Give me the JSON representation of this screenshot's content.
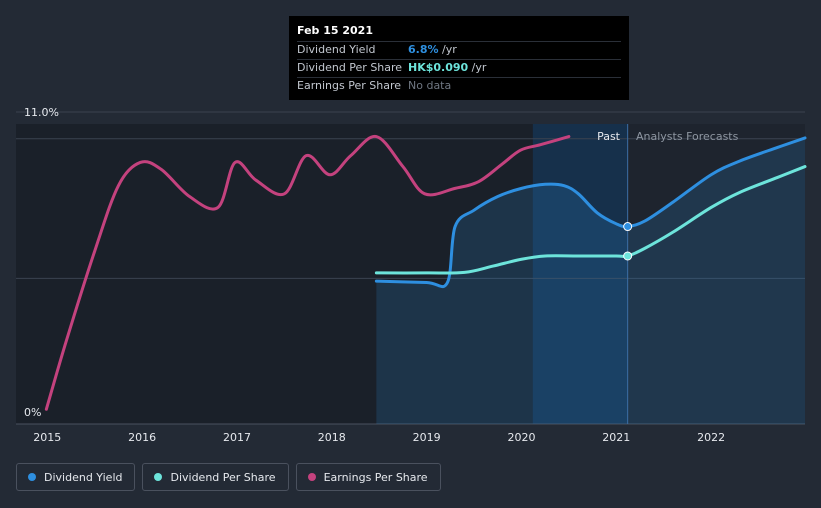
{
  "colors": {
    "background": "#232a35",
    "dividend_yield": "#2e8fe0",
    "dividend_per_share": "#6de4db",
    "earnings_per_share": "#c4427e",
    "gridline": "#3b4350"
  },
  "tooltip": {
    "date": "Feb 15 2021",
    "rows": [
      {
        "label": "Dividend Yield",
        "value": "6.8%",
        "unit": " /yr",
        "color": "#2e8fe0"
      },
      {
        "label": "Dividend Per Share",
        "value": "HK$0.090",
        "unit": " /yr",
        "color": "#6de4db"
      },
      {
        "label": "Earnings Per Share",
        "value": "No data",
        "unit": "",
        "color": "#6f7782"
      }
    ]
  },
  "region_labels": {
    "past": "Past",
    "forecast": "Analysts Forecasts"
  },
  "legend": [
    {
      "label": "Dividend Yield",
      "color": "#2e8fe0"
    },
    {
      "label": "Dividend Per Share",
      "color": "#6de4db"
    },
    {
      "label": "Earnings Per Share",
      "color": "#c4427e"
    }
  ],
  "chart_data": {
    "type": "line",
    "x_ticks": [
      2015,
      2016,
      2017,
      2018,
      2019,
      2020,
      2021,
      2022
    ],
    "xlim": [
      2014.67,
      2022.99
    ],
    "y_tick_labels": [
      "11.0%",
      "0%"
    ],
    "ylim": [
      0,
      11.0
    ],
    "grid": true,
    "legend_position": "bottom-left",
    "current_date": 2021.12,
    "series": [
      {
        "name": "Dividend Yield",
        "color": "#2e8fe0",
        "area": true,
        "points": [
          [
            2018.47,
            4.8
          ],
          [
            2019.0,
            4.75
          ],
          [
            2019.22,
            4.75
          ],
          [
            2019.3,
            6.8
          ],
          [
            2019.5,
            7.4
          ],
          [
            2019.75,
            7.9
          ],
          [
            2020.0,
            8.2
          ],
          [
            2020.25,
            8.35
          ],
          [
            2020.45,
            8.3
          ],
          [
            2020.6,
            8.0
          ],
          [
            2020.8,
            7.3
          ],
          [
            2021.0,
            6.9
          ],
          [
            2021.12,
            6.8
          ],
          [
            2021.3,
            7.0
          ],
          [
            2021.6,
            7.7
          ],
          [
            2022.0,
            8.7
          ],
          [
            2022.3,
            9.2
          ],
          [
            2022.7,
            9.7
          ],
          [
            2022.99,
            10.05
          ]
        ]
      },
      {
        "name": "Dividend Per Share",
        "color": "#6de4db",
        "area": false,
        "points": [
          [
            2018.47,
            5.1
          ],
          [
            2019.0,
            5.1
          ],
          [
            2019.4,
            5.12
          ],
          [
            2019.7,
            5.35
          ],
          [
            2020.0,
            5.6
          ],
          [
            2020.25,
            5.72
          ],
          [
            2020.6,
            5.72
          ],
          [
            2021.0,
            5.72
          ],
          [
            2021.12,
            5.72
          ],
          [
            2021.3,
            6.0
          ],
          [
            2021.6,
            6.6
          ],
          [
            2022.0,
            7.5
          ],
          [
            2022.3,
            8.05
          ],
          [
            2022.7,
            8.6
          ],
          [
            2022.99,
            9.0
          ]
        ]
      },
      {
        "name": "Earnings Per Share",
        "color": "#c4427e",
        "area": false,
        "points": [
          [
            2014.99,
            0.1
          ],
          [
            2015.2,
            2.6
          ],
          [
            2015.5,
            5.9
          ],
          [
            2015.75,
            8.3
          ],
          [
            2015.98,
            9.15
          ],
          [
            2016.2,
            8.9
          ],
          [
            2016.5,
            7.9
          ],
          [
            2016.8,
            7.5
          ],
          [
            2016.98,
            9.15
          ],
          [
            2017.2,
            8.5
          ],
          [
            2017.5,
            8.0
          ],
          [
            2017.73,
            9.4
          ],
          [
            2017.98,
            8.7
          ],
          [
            2018.2,
            9.4
          ],
          [
            2018.47,
            10.1
          ],
          [
            2018.75,
            9.0
          ],
          [
            2018.98,
            8.0
          ],
          [
            2019.3,
            8.2
          ],
          [
            2019.55,
            8.45
          ],
          [
            2019.8,
            9.1
          ],
          [
            2019.99,
            9.6
          ],
          [
            2020.2,
            9.8
          ],
          [
            2020.5,
            10.1
          ]
        ]
      }
    ]
  }
}
